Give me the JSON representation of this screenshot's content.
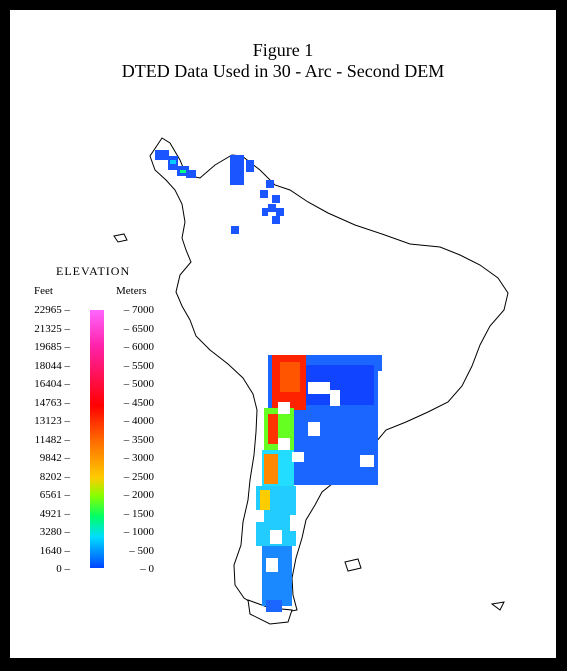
{
  "figure": {
    "title_line1": "Figure 1",
    "title_line2": "DTED Data Used in 30 - Arc - Second DEM"
  },
  "legend": {
    "title": "ELEVATION",
    "feet_header": "Feet",
    "meters_header": "Meters",
    "feet_ticks": [
      "22965",
      "21325",
      "19685",
      "18044",
      "16404",
      "14763",
      "13123",
      "11482",
      "9842",
      "8202",
      "6561",
      "4921",
      "3280",
      "1640",
      "0"
    ],
    "meter_ticks": [
      "7000",
      "6500",
      "6000",
      "5500",
      "5000",
      "4500",
      "4000",
      "3500",
      "3000",
      "2500",
      "2000",
      "1500",
      "1000",
      "500",
      "0"
    ],
    "colors": [
      "#ff66ff",
      "#ff22aa",
      "#ff0000",
      "#ff6600",
      "#ffcc00",
      "#88ff00",
      "#00ff66",
      "#00ddff",
      "#0044ff"
    ]
  }
}
